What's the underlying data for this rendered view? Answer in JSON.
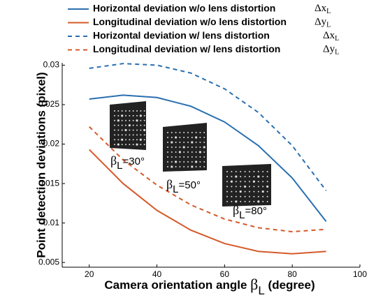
{
  "chart_data": {
    "type": "line",
    "xlabel": {
      "text": "Camera orientation angle ",
      "symbol": "β",
      "sub": "L",
      "suffix": " (degree)"
    },
    "ylabel": "Point detection deviations (pixel)",
    "x": [
      20,
      30,
      40,
      50,
      60,
      70,
      80,
      90
    ],
    "series": [
      {
        "name": "Horizontal deviation w/o lens distortion",
        "symbol": "Δx",
        "symbol_sub": "L",
        "color": "#2a6fb0",
        "dash": false,
        "values": [
          0.0257,
          0.0262,
          0.0259,
          0.0248,
          0.0228,
          0.0198,
          0.0157,
          0.0102
        ]
      },
      {
        "name": "Longitudinal deviation w/o lens distortion",
        "symbol": "Δy",
        "symbol_sub": "L",
        "color": "#d45a2a",
        "dash": false,
        "values": [
          0.0193,
          0.015,
          0.0116,
          0.0091,
          0.0074,
          0.0064,
          0.0061,
          0.0064
        ]
      },
      {
        "name": "Horizontal deviation w/ lens distortion",
        "symbol": "Δx",
        "symbol_sub": "L",
        "color": "#2a6fb0",
        "dash": true,
        "values": [
          0.0296,
          0.0302,
          0.03,
          0.029,
          0.027,
          0.024,
          0.0198,
          0.0141
        ]
      },
      {
        "name": "Longitudinal deviation w/ lens distortion",
        "symbol": "Δy",
        "symbol_sub": "L",
        "color": "#d45a2a",
        "dash": true,
        "values": [
          0.0222,
          0.018,
          0.0148,
          0.0123,
          0.0105,
          0.0094,
          0.0089,
          0.0092
        ]
      }
    ],
    "annotations": [
      {
        "symbol": "β",
        "sub": "L",
        "text": "=30°"
      },
      {
        "symbol": "β",
        "sub": "L",
        "text": "=50°"
      },
      {
        "symbol": "β",
        "sub": "L",
        "text": "=80°"
      }
    ],
    "xlim": [
      12,
      100
    ],
    "xticks": [
      20,
      40,
      60,
      80,
      100
    ],
    "ylim": [
      0.0044,
      0.0303
    ],
    "yticks": [
      0.005,
      0.01,
      0.015,
      0.02,
      0.025,
      0.03
    ],
    "grid": false
  }
}
